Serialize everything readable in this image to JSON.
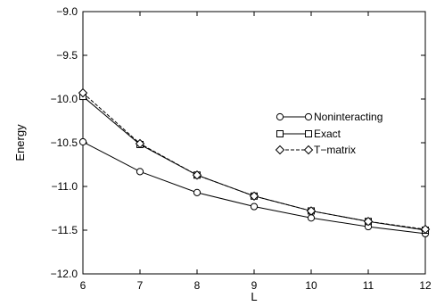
{
  "chart_data": {
    "type": "line",
    "xlabel": "L",
    "ylabel": "Energy",
    "xlim": [
      6,
      12
    ],
    "ylim": [
      -12.0,
      -9.0
    ],
    "xticks": [
      6,
      7,
      8,
      9,
      10,
      11,
      12
    ],
    "yticks": [
      -9.0,
      -9.5,
      -10.0,
      -10.5,
      -11.0,
      -11.5,
      -12.0
    ],
    "xtick_labels": [
      "6",
      "7",
      "8",
      "9",
      "10",
      "11",
      "12"
    ],
    "ytick_labels": [
      "−9.0",
      "−9.5",
      "−10.0",
      "−10.5",
      "−11.0",
      "−11.5",
      "−12.0"
    ],
    "grid": false,
    "legend_position": "right-center",
    "x": [
      6,
      7,
      8,
      9,
      10,
      11,
      12
    ],
    "series": [
      {
        "name": "Noninteracting",
        "marker": "circle",
        "dash": "solid",
        "values": [
          -10.49,
          -10.83,
          -11.07,
          -11.23,
          -11.36,
          -11.46,
          -11.54
        ]
      },
      {
        "name": "Exact",
        "marker": "square",
        "dash": "solid",
        "values": [
          -9.97,
          -10.52,
          -10.87,
          -11.11,
          -11.28,
          -11.4,
          -11.5
        ]
      },
      {
        "name": "T−matrix",
        "marker": "diamond",
        "dash": "dashed",
        "values": [
          -9.93,
          -10.51,
          -10.87,
          -11.11,
          -11.28,
          -11.4,
          -11.49
        ]
      }
    ]
  }
}
